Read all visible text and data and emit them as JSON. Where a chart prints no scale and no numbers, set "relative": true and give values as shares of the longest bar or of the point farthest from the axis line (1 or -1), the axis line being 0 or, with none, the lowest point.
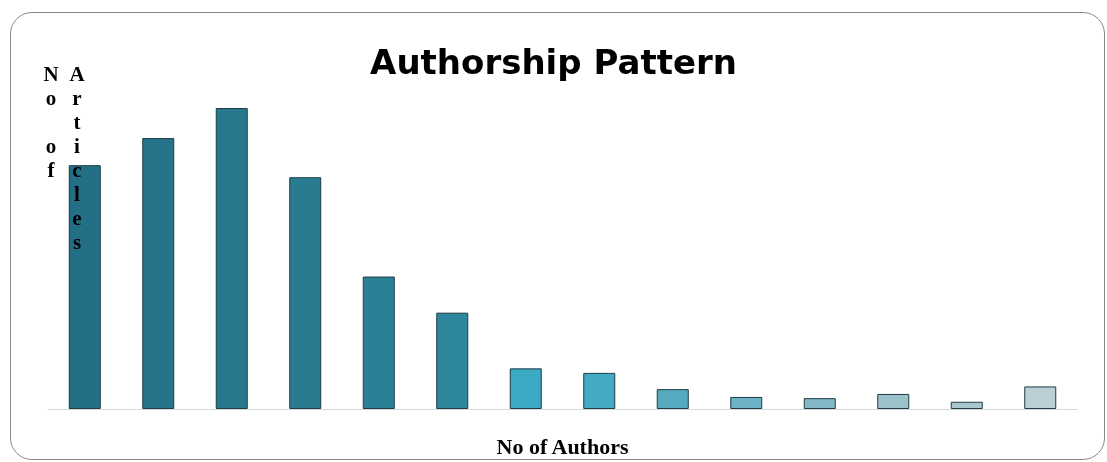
{
  "chart_data": {
    "type": "bar",
    "title": "Authorship Pattern",
    "xlabel": "No of Authors",
    "ylabel": "No of Articles",
    "relative": true,
    "categories": [
      null,
      null,
      null,
      null,
      null,
      null,
      null,
      null,
      null,
      null,
      null,
      null,
      null,
      null
    ],
    "values": [
      0.81,
      0.9,
      1,
      0.77,
      0.44,
      0.32,
      0.135,
      0.12,
      0.066,
      0.04,
      0.036,
      0.05,
      0.024,
      0.075
    ],
    "colors": [
      "#236f85",
      "#257489",
      "#27788d",
      "#297c90",
      "#2b8096",
      "#2e869c",
      "#3aa9c4",
      "#42aac2",
      "#56aac0",
      "#6cb2c6",
      "#82b8c6",
      "#9cc2cc",
      "#aac8d0",
      "#bccfd4"
    ]
  }
}
